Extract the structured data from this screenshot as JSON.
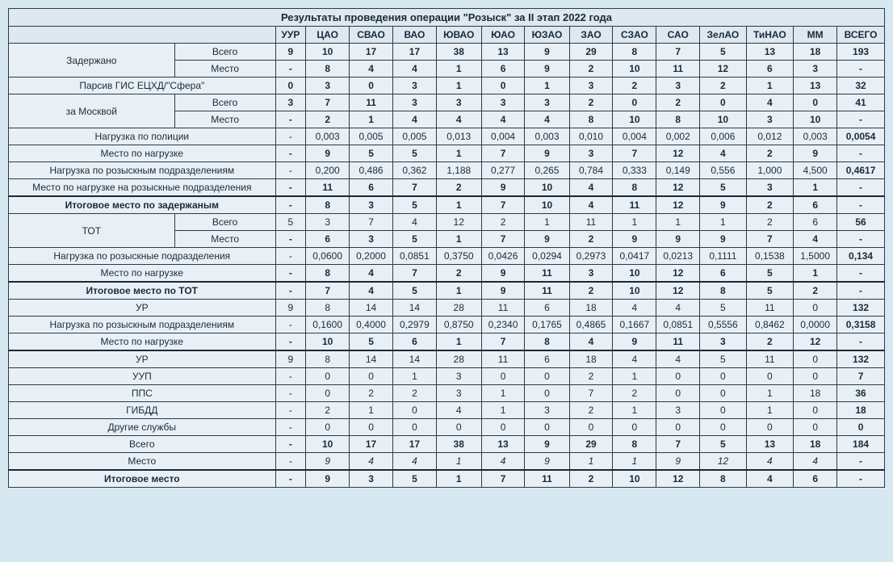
{
  "title": "Результаты проведения операции \"Розыск\" за II этап 2022 года",
  "columns": [
    "УУР",
    "ЦАО",
    "СВАО",
    "ВАО",
    "ЮВАО",
    "ЮАО",
    "ЮЗАО",
    "ЗАО",
    "СЗАО",
    "САО",
    "ЗелАО",
    "ТиНАО",
    "ММ",
    "ВСЕГО"
  ],
  "rows": [
    {
      "label": "Задержано",
      "sub": "Всего",
      "cells": [
        "9",
        "10",
        "17",
        "17",
        "38",
        "13",
        "9",
        "29",
        "8",
        "7",
        "5",
        "13",
        "18",
        "193"
      ],
      "bold": true,
      "rowspan": 2
    },
    {
      "label": "",
      "sub": "Место",
      "cells": [
        "-",
        "8",
        "4",
        "4",
        "1",
        "6",
        "9",
        "2",
        "10",
        "11",
        "12",
        "6",
        "3",
        "-"
      ],
      "bold": true
    },
    {
      "label": "Парсив ГИС ЕЦХД/\"Сфера\"",
      "sub": "",
      "cells": [
        "0",
        "3",
        "0",
        "3",
        "1",
        "0",
        "1",
        "3",
        "2",
        "3",
        "2",
        "1",
        "13",
        "32"
      ],
      "bold": true,
      "colspan": 2
    },
    {
      "label": "за Москвой",
      "sub": "Всего",
      "cells": [
        "3",
        "7",
        "11",
        "3",
        "3",
        "3",
        "3",
        "2",
        "0",
        "2",
        "0",
        "4",
        "0",
        "41"
      ],
      "bold": true,
      "rowspan": 2
    },
    {
      "label": "",
      "sub": "Место",
      "cells": [
        "-",
        "2",
        "1",
        "4",
        "4",
        "4",
        "4",
        "8",
        "10",
        "8",
        "10",
        "3",
        "10",
        "-"
      ],
      "bold": true
    },
    {
      "label": "Нагрузка по полиции",
      "sub": "",
      "cells": [
        "-",
        "0,003",
        "0,005",
        "0,005",
        "0,013",
        "0,004",
        "0,003",
        "0,010",
        "0,004",
        "0,002",
        "0,006",
        "0,012",
        "0,003",
        "0,0054"
      ],
      "bold": false,
      "colspan": 2
    },
    {
      "label": "Место по нагрузке",
      "sub": "",
      "cells": [
        "-",
        "9",
        "5",
        "5",
        "1",
        "7",
        "9",
        "3",
        "7",
        "12",
        "4",
        "2",
        "9",
        "-"
      ],
      "bold": true,
      "colspan": 2
    },
    {
      "label": "Нагрузка по розыскным подразделениям",
      "sub": "",
      "cells": [
        "-",
        "0,200",
        "0,486",
        "0,362",
        "1,188",
        "0,277",
        "0,265",
        "0,784",
        "0,333",
        "0,149",
        "0,556",
        "1,000",
        "4,500",
        "0,4617"
      ],
      "bold": false,
      "colspan": 2
    },
    {
      "label": "Место по нагрузке на розыскные подразделения",
      "sub": "",
      "cells": [
        "-",
        "11",
        "6",
        "7",
        "2",
        "9",
        "10",
        "4",
        "8",
        "12",
        "5",
        "3",
        "1",
        "-"
      ],
      "bold": true,
      "colspan": 2
    },
    {
      "label": "Итоговое место по задержаным",
      "sub": "",
      "cells": [
        "-",
        "8",
        "3",
        "5",
        "1",
        "7",
        "10",
        "4",
        "11",
        "12",
        "9",
        "2",
        "6",
        "-"
      ],
      "bold": true,
      "colspan": 2,
      "thick": true,
      "labelBold": true
    },
    {
      "label": "ТОТ",
      "sub": "Всего",
      "cells": [
        "5",
        "3",
        "7",
        "4",
        "12",
        "2",
        "1",
        "11",
        "1",
        "1",
        "1",
        "2",
        "6",
        "56"
      ],
      "bold": false,
      "rowspan": 2
    },
    {
      "label": "",
      "sub": "Место",
      "cells": [
        "-",
        "6",
        "3",
        "5",
        "1",
        "7",
        "9",
        "2",
        "9",
        "9",
        "9",
        "7",
        "4",
        "-"
      ],
      "bold": true
    },
    {
      "label": "Нагрузка по розыскные подразделения",
      "sub": "",
      "cells": [
        "-",
        "0,0600",
        "0,2000",
        "0,0851",
        "0,3750",
        "0,0426",
        "0,0294",
        "0,2973",
        "0,0417",
        "0,0213",
        "0,1111",
        "0,1538",
        "1,5000",
        "0,134"
      ],
      "bold": false,
      "colspan": 2
    },
    {
      "label": "Место по нагрузке",
      "sub": "",
      "cells": [
        "-",
        "8",
        "4",
        "7",
        "2",
        "9",
        "11",
        "3",
        "10",
        "12",
        "6",
        "5",
        "1",
        "-"
      ],
      "bold": true,
      "colspan": 2
    },
    {
      "label": "Итоговое место по ТОТ",
      "sub": "",
      "cells": [
        "-",
        "7",
        "4",
        "5",
        "1",
        "9",
        "11",
        "2",
        "10",
        "12",
        "8",
        "5",
        "2",
        "-"
      ],
      "bold": true,
      "colspan": 2,
      "thick": true,
      "labelBold": true
    },
    {
      "label": "УР",
      "sub": "",
      "cells": [
        "9",
        "8",
        "14",
        "14",
        "28",
        "11",
        "6",
        "18",
        "4",
        "4",
        "5",
        "11",
        "0",
        "132"
      ],
      "bold": false,
      "colspan": 2
    },
    {
      "label": "Нагрузка по розыскным подразделениям",
      "sub": "",
      "cells": [
        "-",
        "0,1600",
        "0,4000",
        "0,2979",
        "0,8750",
        "0,2340",
        "0,1765",
        "0,4865",
        "0,1667",
        "0,0851",
        "0,5556",
        "0,8462",
        "0,0000",
        "0,3158"
      ],
      "bold": false,
      "colspan": 2
    },
    {
      "label": "Место по нагрузке",
      "sub": "",
      "cells": [
        "-",
        "10",
        "5",
        "6",
        "1",
        "7",
        "8",
        "4",
        "9",
        "11",
        "3",
        "2",
        "12",
        "-"
      ],
      "bold": true,
      "colspan": 2
    },
    {
      "label": "УР",
      "sub": "",
      "cells": [
        "9",
        "8",
        "14",
        "14",
        "28",
        "11",
        "6",
        "18",
        "4",
        "4",
        "5",
        "11",
        "0",
        "132"
      ],
      "bold": false,
      "colspan": 2,
      "thick": true
    },
    {
      "label": "УУП",
      "sub": "",
      "cells": [
        "-",
        "0",
        "0",
        "1",
        "3",
        "0",
        "0",
        "2",
        "1",
        "0",
        "0",
        "0",
        "0",
        "7"
      ],
      "bold": false,
      "colspan": 2
    },
    {
      "label": "ППС",
      "sub": "",
      "cells": [
        "-",
        "0",
        "2",
        "2",
        "3",
        "1",
        "0",
        "7",
        "2",
        "0",
        "0",
        "1",
        "18",
        "36"
      ],
      "bold": false,
      "colspan": 2
    },
    {
      "label": "ГИБДД",
      "sub": "",
      "cells": [
        "-",
        "2",
        "1",
        "0",
        "4",
        "1",
        "3",
        "2",
        "1",
        "3",
        "0",
        "1",
        "0",
        "18"
      ],
      "bold": false,
      "colspan": 2
    },
    {
      "label": "Другие службы",
      "sub": "",
      "cells": [
        "-",
        "0",
        "0",
        "0",
        "0",
        "0",
        "0",
        "0",
        "0",
        "0",
        "0",
        "0",
        "0",
        "0"
      ],
      "bold": false,
      "colspan": 2
    },
    {
      "label": "Всего",
      "sub": "",
      "cells": [
        "-",
        "10",
        "17",
        "17",
        "38",
        "13",
        "9",
        "29",
        "8",
        "7",
        "5",
        "13",
        "18",
        "184"
      ],
      "bold": true,
      "colspan": 2
    },
    {
      "label": "Место",
      "sub": "",
      "cells": [
        "-",
        "9",
        "4",
        "4",
        "1",
        "4",
        "9",
        "1",
        "1",
        "9",
        "12",
        "4",
        "4",
        "-"
      ],
      "bold": false,
      "italic": true,
      "colspan": 2
    },
    {
      "label": "Итоговое место",
      "sub": "",
      "cells": [
        "-",
        "9",
        "3",
        "5",
        "1",
        "7",
        "11",
        "2",
        "10",
        "12",
        "8",
        "4",
        "6",
        "-"
      ],
      "bold": true,
      "colspan": 2,
      "thick": true,
      "labelBold": true
    }
  ]
}
